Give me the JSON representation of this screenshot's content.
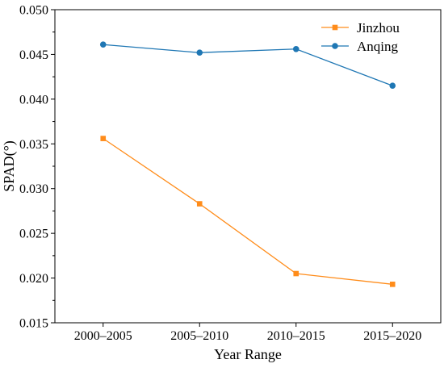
{
  "chart_data": {
    "type": "line",
    "title": "",
    "xlabel": "Year Range",
    "ylabel": "SPAD(°)",
    "categories": [
      "2000–2005",
      "2005–2010",
      "2010–2015",
      "2015–2020"
    ],
    "ylim": [
      0.015,
      0.05
    ],
    "yticks": [
      "0.015",
      "0.020",
      "0.025",
      "0.030",
      "0.035",
      "0.040",
      "0.045",
      "0.050"
    ],
    "grid": false,
    "legend_position": "top-right",
    "series": [
      {
        "name": "Jinzhou",
        "values": [
          0.0356,
          0.0283,
          0.0205,
          0.0193
        ],
        "color": "#ff8c1a",
        "marker": "square"
      },
      {
        "name": "Anqing",
        "values": [
          0.0461,
          0.0452,
          0.0456,
          0.0415
        ],
        "color": "#1f77b4",
        "marker": "circle"
      }
    ]
  }
}
